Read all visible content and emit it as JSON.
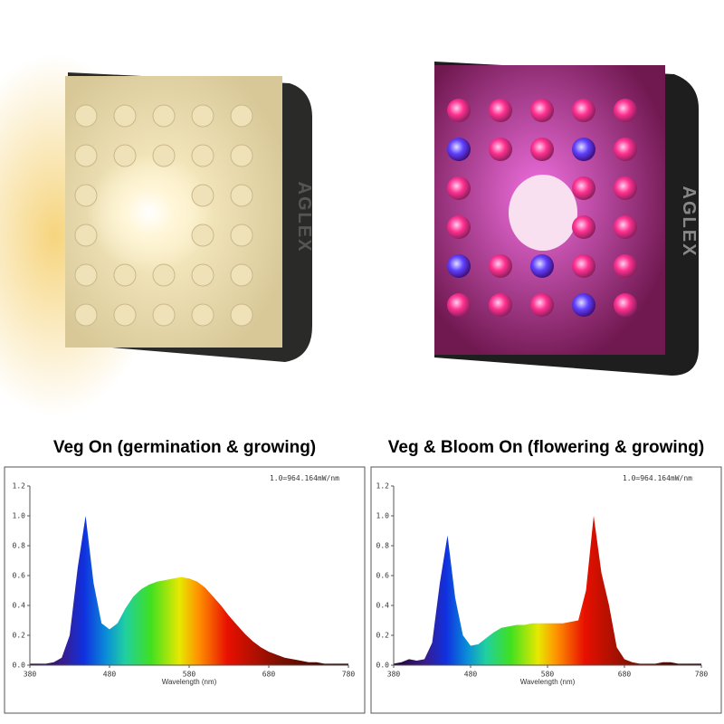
{
  "brand": "AGLEX",
  "chart_data": [
    {
      "type": "area",
      "title": "Veg On (germination & growing)",
      "note": "1.0=964.164mW/nm",
      "xlabel": "Wavelength (nm)",
      "x": [
        380,
        390,
        400,
        410,
        420,
        430,
        440,
        450,
        460,
        470,
        480,
        490,
        500,
        510,
        520,
        530,
        540,
        550,
        560,
        570,
        580,
        590,
        600,
        610,
        620,
        630,
        640,
        650,
        660,
        670,
        680,
        690,
        700,
        710,
        720,
        730,
        740,
        750,
        760,
        770,
        780
      ],
      "values": [
        0.01,
        0.01,
        0.01,
        0.02,
        0.05,
        0.2,
        0.65,
        1.0,
        0.55,
        0.28,
        0.24,
        0.28,
        0.38,
        0.46,
        0.51,
        0.54,
        0.56,
        0.57,
        0.58,
        0.59,
        0.58,
        0.56,
        0.52,
        0.46,
        0.4,
        0.33,
        0.27,
        0.21,
        0.16,
        0.12,
        0.09,
        0.07,
        0.05,
        0.04,
        0.03,
        0.02,
        0.02,
        0.01,
        0.01,
        0.01,
        0.01
      ],
      "xlim": [
        380,
        780
      ],
      "ylim": [
        0,
        1.2
      ],
      "xticks": [
        380,
        480,
        580,
        680,
        780
      ],
      "yticks": [
        {
          "value": 0,
          "label": "0.0"
        },
        0.2,
        0.4,
        0.6,
        0.8,
        {
          "value": 1,
          "label": "1.0"
        },
        1.2
      ]
    },
    {
      "type": "area",
      "title": "Veg & Bloom On (flowering & growing)",
      "note": "1.0=964.164mW/nm",
      "xlabel": "Wavelength (nm)",
      "x": [
        380,
        390,
        400,
        410,
        420,
        430,
        440,
        450,
        460,
        470,
        480,
        490,
        500,
        510,
        520,
        530,
        540,
        550,
        560,
        570,
        580,
        590,
        600,
        610,
        620,
        630,
        640,
        650,
        660,
        670,
        680,
        690,
        700,
        710,
        720,
        730,
        740,
        750,
        760,
        770,
        780
      ],
      "values": [
        0.01,
        0.02,
        0.04,
        0.03,
        0.04,
        0.15,
        0.55,
        0.87,
        0.45,
        0.2,
        0.13,
        0.14,
        0.18,
        0.22,
        0.25,
        0.26,
        0.27,
        0.27,
        0.28,
        0.28,
        0.28,
        0.28,
        0.28,
        0.29,
        0.3,
        0.5,
        1.0,
        0.62,
        0.4,
        0.12,
        0.04,
        0.02,
        0.01,
        0.01,
        0.01,
        0.02,
        0.02,
        0.01,
        0.01,
        0.01,
        0.01
      ],
      "xlim": [
        380,
        780
      ],
      "ylim": [
        0,
        1.2
      ],
      "xticks": [
        380,
        480,
        580,
        680,
        780
      ],
      "yticks": [
        {
          "value": 0,
          "label": "0.0"
        },
        0.2,
        0.4,
        0.6,
        0.8,
        {
          "value": 1,
          "label": "1.0"
        },
        1.2
      ]
    }
  ]
}
